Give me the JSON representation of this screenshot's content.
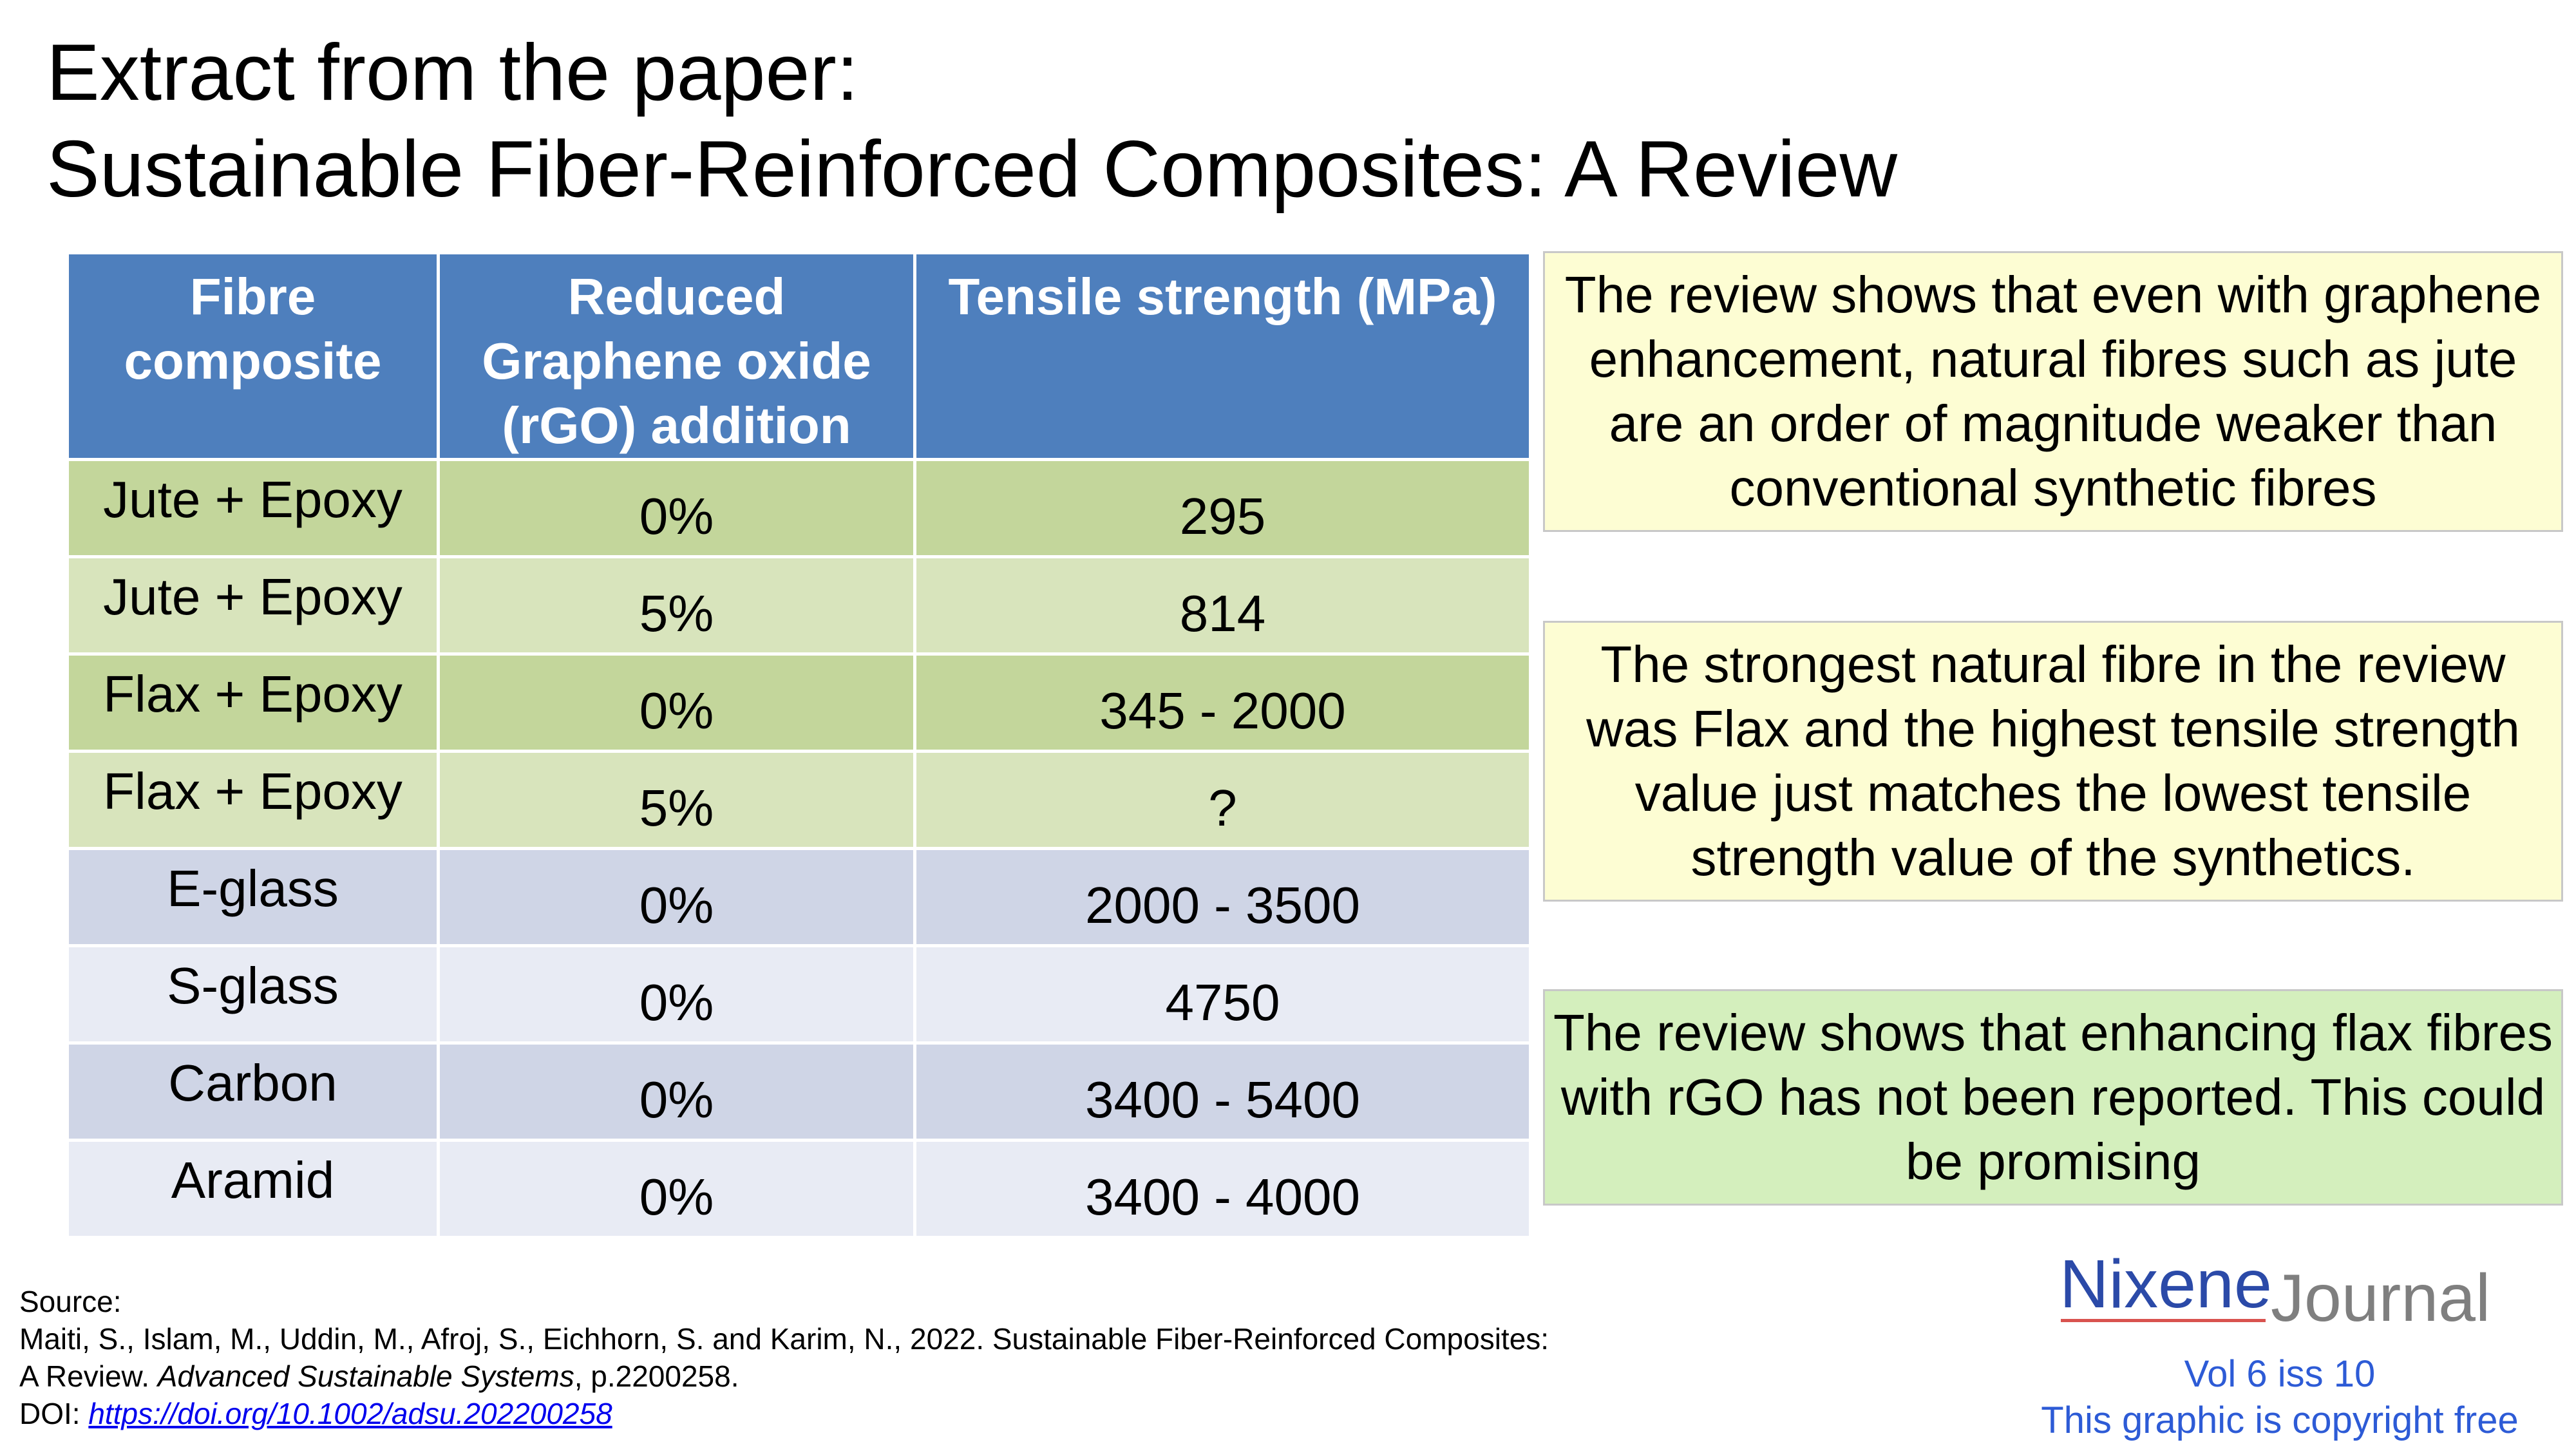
{
  "title": {
    "line1": "Extract from the paper:",
    "line2": "Sustainable Fiber-Reinforced Composites: A Review"
  },
  "table": {
    "headers": [
      "Fibre composite",
      "Reduced Graphene oxide (rGO) addition",
      "Tensile strength (MPa)"
    ],
    "rows": [
      {
        "fibre": "Jute + Epoxy",
        "rgo": "0%",
        "strength": "295"
      },
      {
        "fibre": "Jute + Epoxy",
        "rgo": "5%",
        "strength": "814"
      },
      {
        "fibre": "Flax + Epoxy",
        "rgo": "0%",
        "strength": "345 - 2000"
      },
      {
        "fibre": "Flax + Epoxy",
        "rgo": "5%",
        "strength": "?"
      },
      {
        "fibre": "E-glass",
        "rgo": "0%",
        "strength": "2000 - 3500"
      },
      {
        "fibre": "S-glass",
        "rgo": "0%",
        "strength": "4750"
      },
      {
        "fibre": "Carbon",
        "rgo": "0%",
        "strength": "3400 - 5400"
      },
      {
        "fibre": "Aramid",
        "rgo": "0%",
        "strength": "3400 - 4000"
      }
    ]
  },
  "notes": [
    {
      "text": "The review shows that even with graphene enhancement, natural fibres such as jute are an order of magnitude weaker than conventional synthetic fibres",
      "color": "#fdfdd3"
    },
    {
      "text": "The strongest natural fibre in the review was Flax and the highest tensile strength value just matches the lowest tensile strength value of the synthetics.",
      "color": "#fdfdd3"
    },
    {
      "text": "The review shows that enhancing flax fibres with rGO has not been reported. This could be promising",
      "color": "#d4efbd"
    }
  ],
  "source": {
    "label": "Source:",
    "citation_line1": "Maiti, S., Islam, M., Uddin, M., Afroj, S., Eichhorn, S. and Karim, N., 2022. Sustainable Fiber-Reinforced Composites:",
    "citation_line2_a": "A Review. ",
    "citation_journal": "Advanced Sustainable Systems",
    "citation_line2_b": ", p.2200258.",
    "doi_label": "DOI: ",
    "doi_link": "https://doi.org/10.1002/adsu.202200258"
  },
  "brand": {
    "name_primary": "Nixene",
    "name_secondary": "Journal",
    "volume": "Vol 6 iss 10",
    "copyright": "This graphic is copyright free"
  },
  "colors": {
    "header_blue": "#4e7fbd",
    "natural_dark": "#c3d69b",
    "natural_light": "#d8e4bc",
    "synthetic_dark": "#cfd5e6",
    "synthetic_light": "#e8ebf4",
    "link_blue": "#2d5bd6"
  }
}
